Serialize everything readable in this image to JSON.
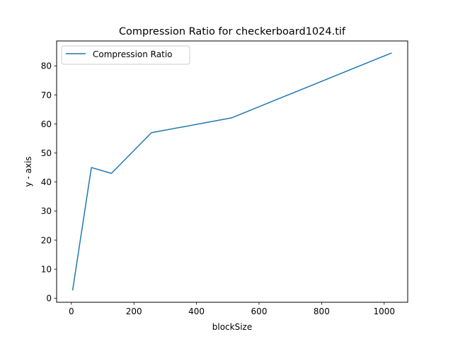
{
  "chart_data": {
    "type": "line",
    "title": "Compression Ratio for checkerboard1024.tif",
    "xlabel": "blockSize",
    "ylabel": "y - axis",
    "xlim": [
      -47.2,
      1075.2
    ],
    "ylim": [
      -1.4,
      88.6
    ],
    "xticks": [
      0,
      200,
      400,
      600,
      800,
      1000
    ],
    "yticks": [
      0,
      10,
      20,
      30,
      40,
      50,
      60,
      70,
      80
    ],
    "grid": false,
    "legend_position": "top-left",
    "series": [
      {
        "name": "Compression Ratio",
        "color": "#1f77b4",
        "x": [
          4,
          64,
          128,
          256,
          512,
          1024
        ],
        "y": [
          2.7,
          45.0,
          43.0,
          57.0,
          62.1,
          84.5
        ]
      }
    ]
  }
}
